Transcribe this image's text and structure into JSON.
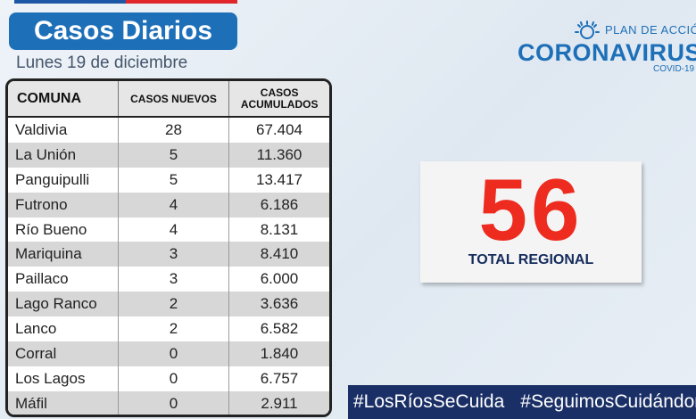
{
  "header": {
    "title": "Casos Diarios",
    "date": "Lunes 19 de diciembre"
  },
  "table": {
    "columns": [
      "COMUNA",
      "CASOS NUEVOS",
      "CASOS ACUMULADOS"
    ],
    "rows": [
      {
        "comuna": "Valdivia",
        "nuevos": "28",
        "acumulados": "67.404"
      },
      {
        "comuna": "La Unión",
        "nuevos": "5",
        "acumulados": "11.360"
      },
      {
        "comuna": "Panguipulli",
        "nuevos": "5",
        "acumulados": "13.417"
      },
      {
        "comuna": "Futrono",
        "nuevos": "4",
        "acumulados": "6.186"
      },
      {
        "comuna": "Río Bueno",
        "nuevos": "4",
        "acumulados": "8.131"
      },
      {
        "comuna": "Mariquina",
        "nuevos": "3",
        "acumulados": "8.410"
      },
      {
        "comuna": "Paillaco",
        "nuevos": "3",
        "acumulados": "6.000"
      },
      {
        "comuna": "Lago Ranco",
        "nuevos": "2",
        "acumulados": "3.636"
      },
      {
        "comuna": "Lanco",
        "nuevos": "2",
        "acumulados": "6.582"
      },
      {
        "comuna": "Corral",
        "nuevos": "0",
        "acumulados": "1.840"
      },
      {
        "comuna": "Los Lagos",
        "nuevos": "0",
        "acumulados": "6.757"
      },
      {
        "comuna": "Máfil",
        "nuevos": "0",
        "acumulados": "2.911"
      }
    ]
  },
  "logo": {
    "plan": "PLAN DE ACCIÓN",
    "name": "CORONAVIRUS",
    "sub": "COVID-19"
  },
  "total": {
    "value": "56",
    "label": "TOTAL REGIONAL"
  },
  "hashtags": [
    "#LosRíosSeCuida",
    "#SeguimosCuidándonos"
  ],
  "colors": {
    "title_bg": "#1d6fb8",
    "total_number": "#ee2b1f",
    "hashtag_bar": "#1a2f66"
  }
}
